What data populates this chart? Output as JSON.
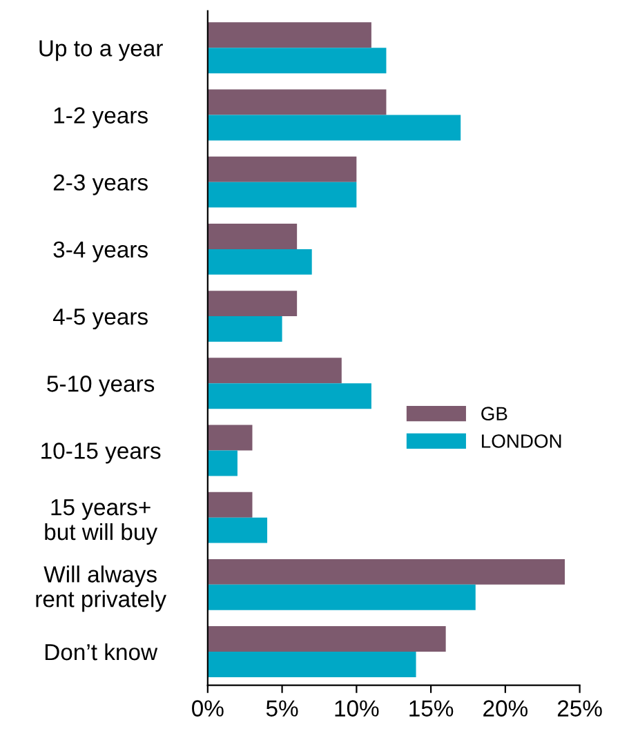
{
  "chart_data": {
    "type": "bar",
    "orientation": "horizontal",
    "categories": [
      "Up to a year",
      "1-2 years",
      "2-3 years",
      "3-4 years",
      "4-5 years",
      "5-10 years",
      "10-15 years",
      "15 years+\nbut will buy",
      "Will always\nrent privately",
      "Don’t know"
    ],
    "series": [
      {
        "name": "GB",
        "color": "#7d5a6e",
        "values": [
          11,
          12,
          10,
          6,
          6,
          9,
          3,
          3,
          24,
          16
        ]
      },
      {
        "name": "LONDON",
        "color": "#00a8c6",
        "values": [
          12,
          17,
          10,
          7,
          5,
          11,
          2,
          4,
          18,
          14
        ]
      }
    ],
    "xlim": [
      0,
      25
    ],
    "xticks": [
      {
        "value": 0,
        "label": "0%"
      },
      {
        "value": 5,
        "label": "5%"
      },
      {
        "value": 10,
        "label": "10%"
      },
      {
        "value": 15,
        "label": "15%"
      },
      {
        "value": 20,
        "label": "20%"
      },
      {
        "value": 25,
        "label": "25%"
      }
    ],
    "grid": false,
    "legend": "right"
  }
}
